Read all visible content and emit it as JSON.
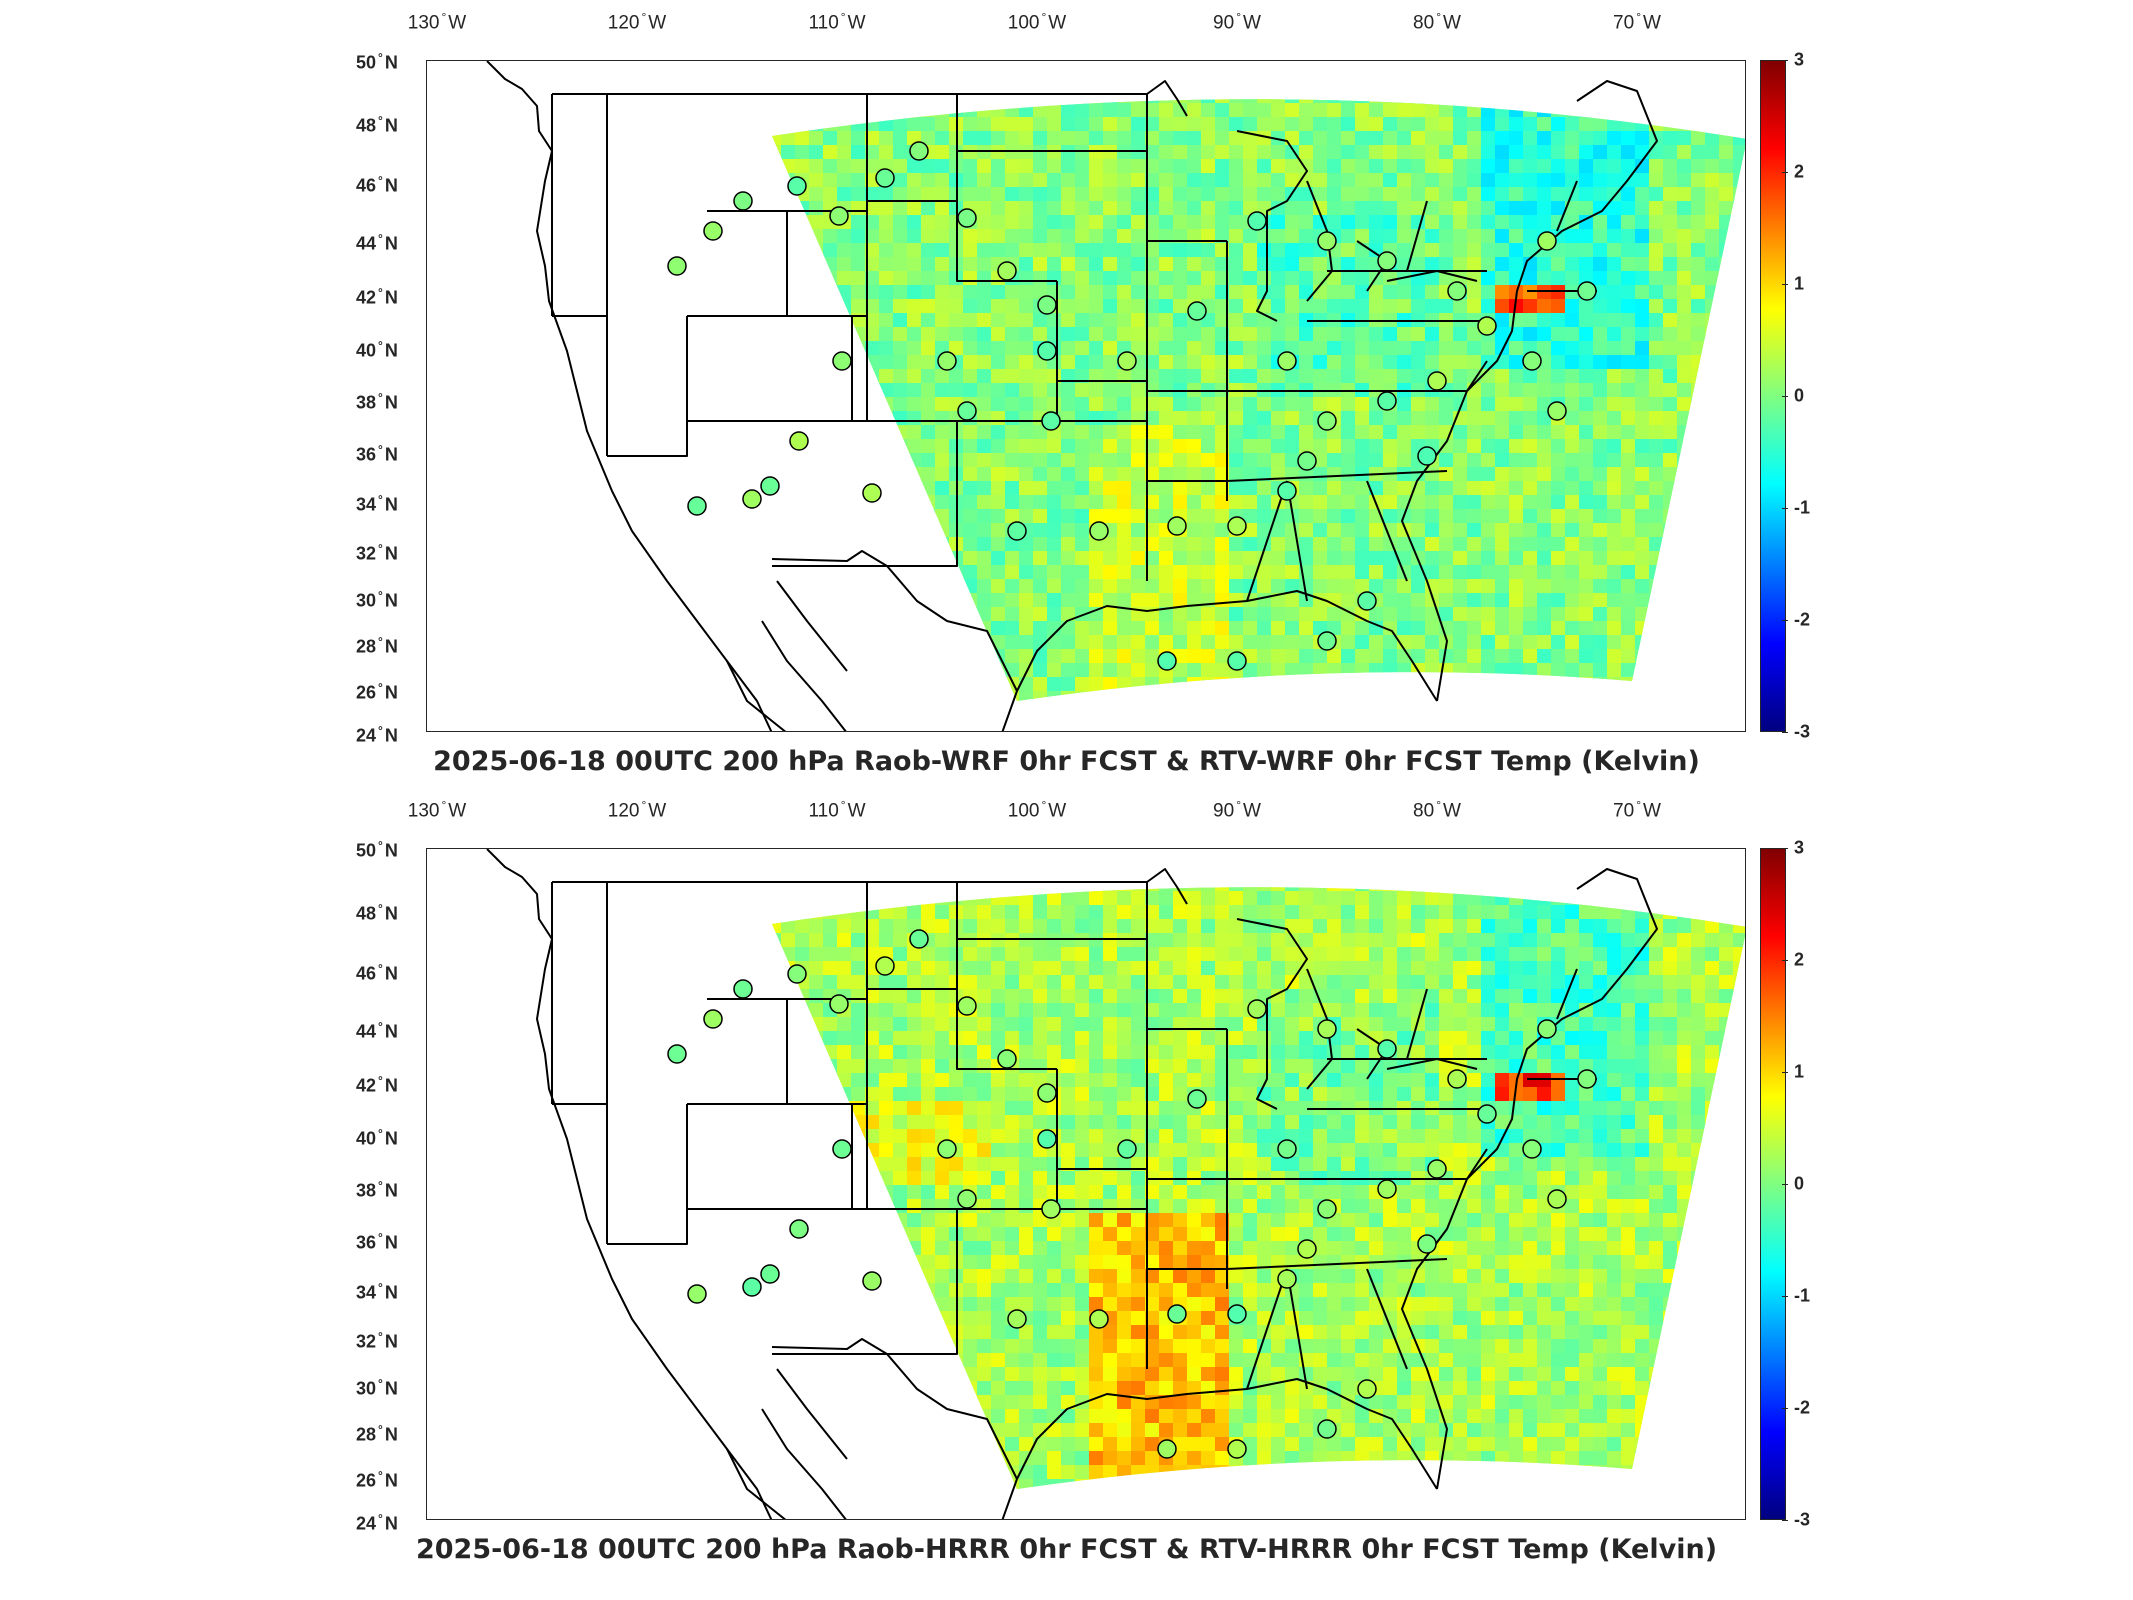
{
  "colors": {
    "low": "#000080",
    "zero": "#80ff80",
    "high": "#800000",
    "outline": "#000000"
  },
  "lon_labels": [
    {
      "deg": "130",
      "hem": "W"
    },
    {
      "deg": "120",
      "hem": "W"
    },
    {
      "deg": "110",
      "hem": "W"
    },
    {
      "deg": "100",
      "hem": "W"
    },
    {
      "deg": "90",
      "hem": "W"
    },
    {
      "deg": "80",
      "hem": "W"
    },
    {
      "deg": "70",
      "hem": "W"
    }
  ],
  "lat_labels": [
    {
      "deg": "50",
      "hem": "N"
    },
    {
      "deg": "48",
      "hem": "N"
    },
    {
      "deg": "46",
      "hem": "N"
    },
    {
      "deg": "44",
      "hem": "N"
    },
    {
      "deg": "42",
      "hem": "N"
    },
    {
      "deg": "40",
      "hem": "N"
    },
    {
      "deg": "38",
      "hem": "N"
    },
    {
      "deg": "36",
      "hem": "N"
    },
    {
      "deg": "34",
      "hem": "N"
    },
    {
      "deg": "32",
      "hem": "N"
    },
    {
      "deg": "30",
      "hem": "N"
    },
    {
      "deg": "28",
      "hem": "N"
    },
    {
      "deg": "26",
      "hem": "N"
    },
    {
      "deg": "24",
      "hem": "N"
    }
  ],
  "colorbar_ticks": [
    "3",
    "2",
    "1",
    "0",
    "-1",
    "-2",
    "-3"
  ],
  "panels": [
    {
      "id": "wrf",
      "title": "2025-06-18 00UTC 200 hPa Raob-WRF 0hr FCST & RTV-WRF 0hr FCST Temp (Kelvin)",
      "field_mean_color": "#8cf07a"
    },
    {
      "id": "hrrr",
      "title": "2025-06-18 00UTC 200 hPa Raob-HRRR 0hr FCST & RTV-HRRR 0hr FCST Temp (Kelvin)",
      "field_mean_color": "#b8f060"
    }
  ]
}
